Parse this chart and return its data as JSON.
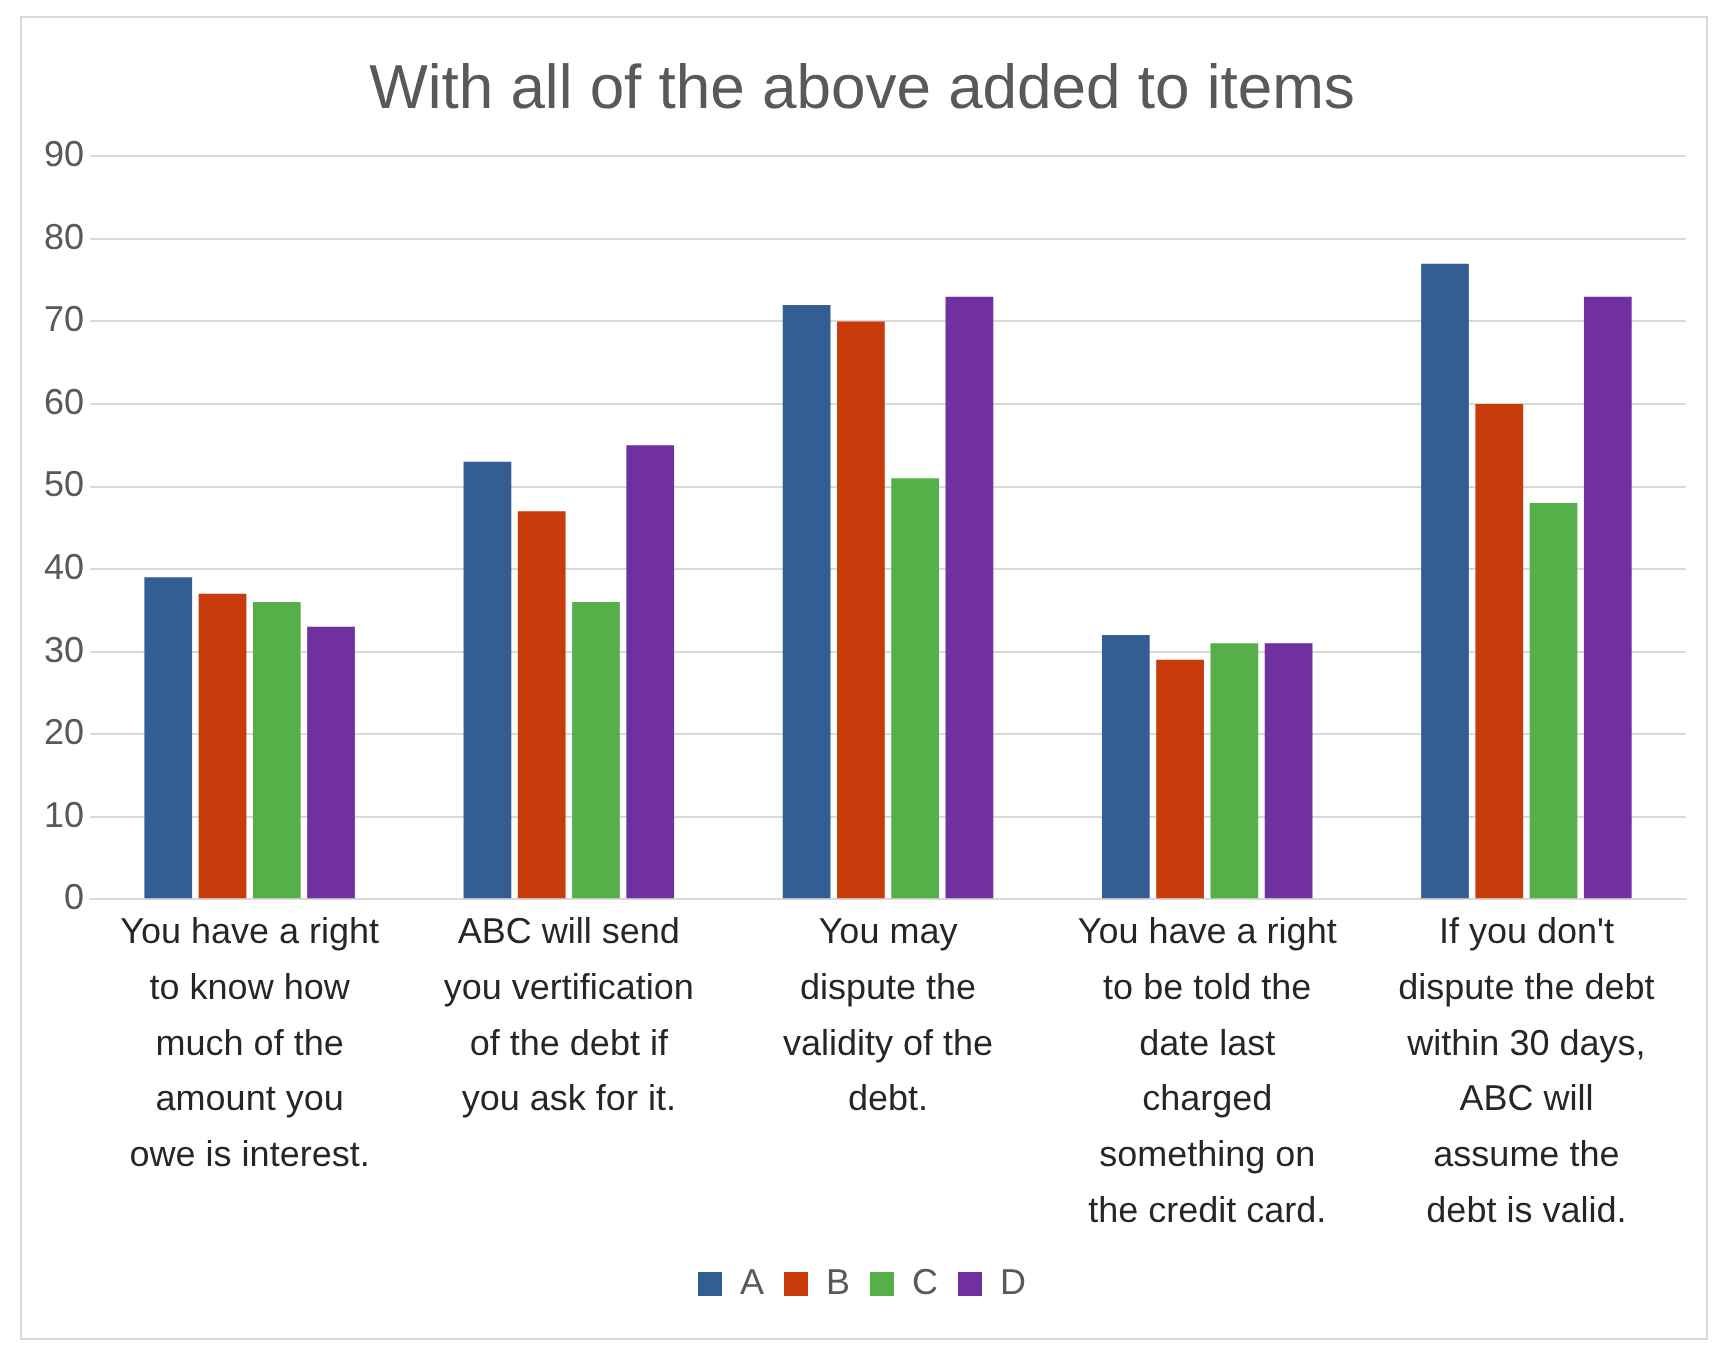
{
  "chart_data": {
    "type": "bar",
    "title": "With all of the above added to items",
    "categories": [
      "You have a right to know how much of the amount you owe is interest.",
      "ABC will send you vertification of the debt if you ask for it.",
      "You may dispute the validity of the debt.",
      "You have a right to be told the date last charged something on the credit card.",
      "If you don't dispute the debt within 30 days, ABC will assume the debt is valid."
    ],
    "series": [
      {
        "name": "A",
        "color": "#335e94",
        "values": [
          39,
          53,
          72,
          32,
          77
        ]
      },
      {
        "name": "B",
        "color": "#c83b0a",
        "values": [
          37,
          47,
          70,
          29,
          60
        ]
      },
      {
        "name": "C",
        "color": "#55b04a",
        "values": [
          36,
          36,
          51,
          31,
          48
        ]
      },
      {
        "name": "D",
        "color": "#7030a0",
        "values": [
          33,
          55,
          73,
          31,
          73
        ]
      }
    ],
    "ylim": [
      0,
      90
    ],
    "yticks": [
      0,
      10,
      20,
      30,
      40,
      50,
      60,
      70,
      80,
      90
    ],
    "grid": "y",
    "legend": "bottom"
  }
}
